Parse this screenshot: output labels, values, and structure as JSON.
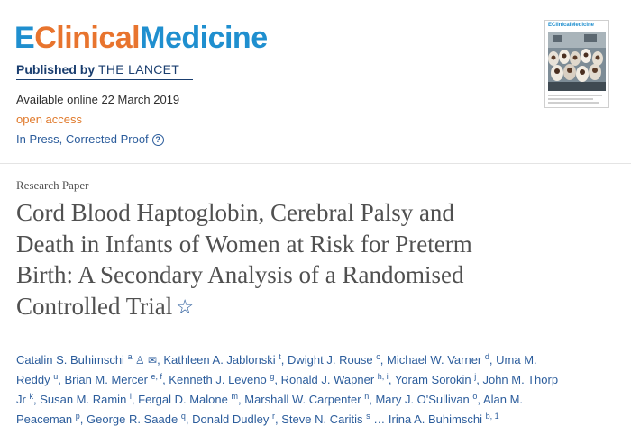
{
  "journal": {
    "logo_e": "E",
    "logo_clinical": "Clinical",
    "logo_medicine": "Medicine",
    "published_by": "Published by ",
    "publisher": "THE LANCET",
    "cover_title": "EClinicalMedicine"
  },
  "meta": {
    "available_online": "Available online 22 March 2019",
    "access": "open access",
    "status": "In Press, Corrected Proof",
    "help_icon": "?"
  },
  "article": {
    "type": "Research Paper",
    "title_lines": [
      "Cord Blood Haptoglobin, Cerebral Palsy and",
      "Death in Infants of Women at Risk for Preterm",
      "Birth: A Secondary Analysis of a Randomised",
      "Controlled Trial"
    ],
    "star_icon": "☆"
  },
  "authors": {
    "icons": " ♙ ✉",
    "lines": [
      [
        {
          "name": "Catalin S. Buhimschi",
          "sup": "a",
          "icons": true,
          "sep": ", "
        },
        {
          "name": "Kathleen A. Jablonski",
          "sup": "t",
          "sep": ", "
        },
        {
          "name": "Dwight J. Rouse",
          "sup": "c",
          "sep": ", "
        },
        {
          "name": "Michael W. Varner",
          "sup": "d",
          "sep": ", "
        },
        {
          "name": "Uma M.",
          "sup": "",
          "sep": ""
        }
      ],
      [
        {
          "name": "Reddy",
          "sup": "u",
          "sep": ", "
        },
        {
          "name": "Brian M. Mercer",
          "sup": "e, f",
          "sep": ", "
        },
        {
          "name": "Kenneth J. Leveno",
          "sup": "g",
          "sep": ", "
        },
        {
          "name": "Ronald J. Wapner",
          "sup": "h, i",
          "sep": ", "
        },
        {
          "name": "Yoram Sorokin",
          "sup": "j",
          "sep": ", "
        },
        {
          "name": "John M. Thorp",
          "sup": "",
          "sep": ""
        }
      ],
      [
        {
          "name": "Jr",
          "sup": "k",
          "sep": ", "
        },
        {
          "name": "Susan M. Ramin",
          "sup": "l",
          "sep": ", "
        },
        {
          "name": "Fergal D. Malone",
          "sup": "m",
          "sep": ", "
        },
        {
          "name": "Marshall W. Carpenter",
          "sup": "n",
          "sep": ", "
        },
        {
          "name": "Mary J. O'Sullivan",
          "sup": "o",
          "sep": ", "
        },
        {
          "name": "Alan M.",
          "sup": "",
          "sep": ""
        }
      ],
      [
        {
          "name": "Peaceman",
          "sup": "p",
          "sep": ", "
        },
        {
          "name": "George R. Saade",
          "sup": "q",
          "sep": ", "
        },
        {
          "name": "Donald Dudley",
          "sup": "r",
          "sep": ", "
        },
        {
          "name": "Steve N. Caritis",
          "sup": "s",
          "sep": " … "
        },
        {
          "name": "Irina A. Buhimschi",
          "sup": "b, 1",
          "sep": ""
        }
      ]
    ]
  }
}
